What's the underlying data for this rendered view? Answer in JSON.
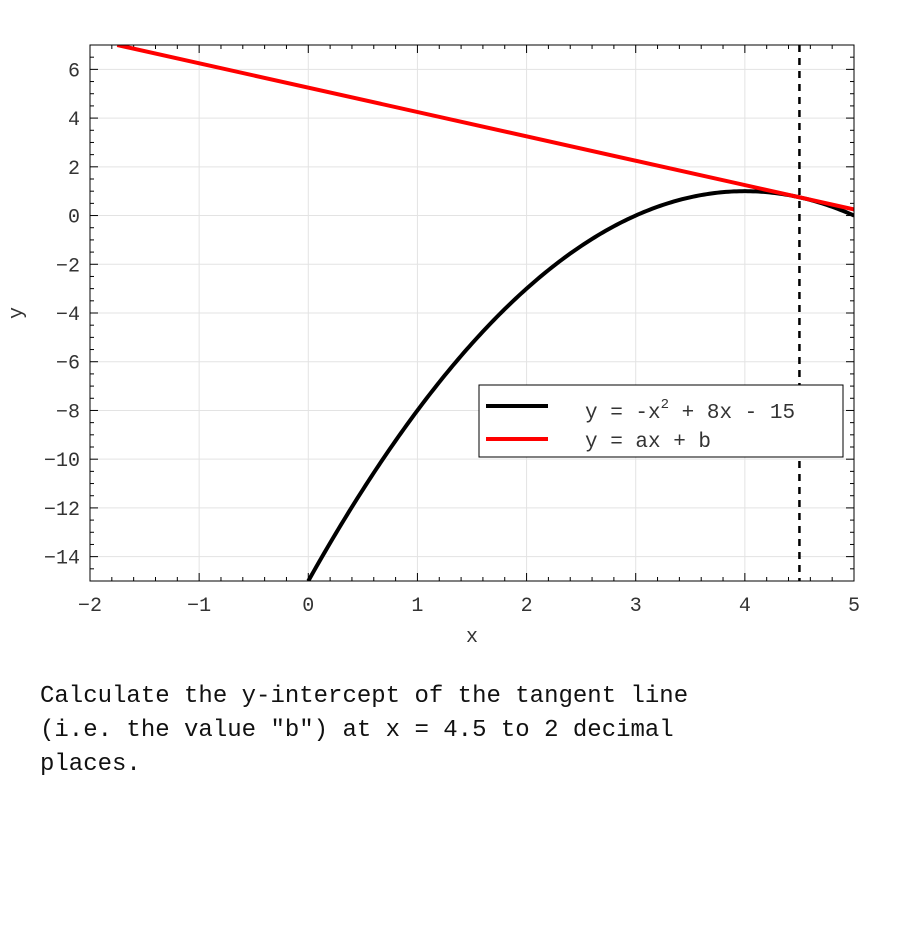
{
  "chart_data": {
    "type": "line",
    "xlabel": "x",
    "ylabel": "y",
    "xlim": [
      -2,
      5
    ],
    "ylim": [
      -15,
      7
    ],
    "xticks": [
      -2,
      -1,
      0,
      1,
      2,
      3,
      4,
      5
    ],
    "yticks": [
      6,
      4,
      2,
      0,
      -2,
      -4,
      -6,
      -8,
      -10,
      -12,
      -14
    ],
    "tick_labels": {
      "x": [
        "−2",
        "−1",
        "0",
        "1",
        "2",
        "3",
        "4",
        "5"
      ],
      "y": [
        "6",
        "4",
        "2",
        "0",
        "−2",
        "−4",
        "−6",
        "−8",
        "−10",
        "−12",
        "−14"
      ]
    },
    "grid": true,
    "legend_position": "lower-right",
    "series": [
      {
        "name_parts": {
          "before": "y = -x",
          "sup": "2",
          "after": " + 8x - 15"
        },
        "kind": "curve",
        "coefficients": {
          "a2": -1,
          "a1": 8,
          "a0": -15
        },
        "x_range": [
          0,
          5
        ],
        "color": "#000000"
      },
      {
        "name_parts": {
          "before": "y = ax + b",
          "sup": "",
          "after": ""
        },
        "kind": "tangent_line",
        "slope": -1,
        "intercept": 5.25,
        "x_range": [
          -1.75,
          5
        ],
        "color": "#ff0000"
      }
    ],
    "marker_line": {
      "x": 4.5,
      "style": "dashed",
      "color": "#000000"
    }
  },
  "question": "Calculate the y-intercept of the tangent line\n(i.e. the value \"b\") at x = 4.5 to 2 decimal\nplaces."
}
